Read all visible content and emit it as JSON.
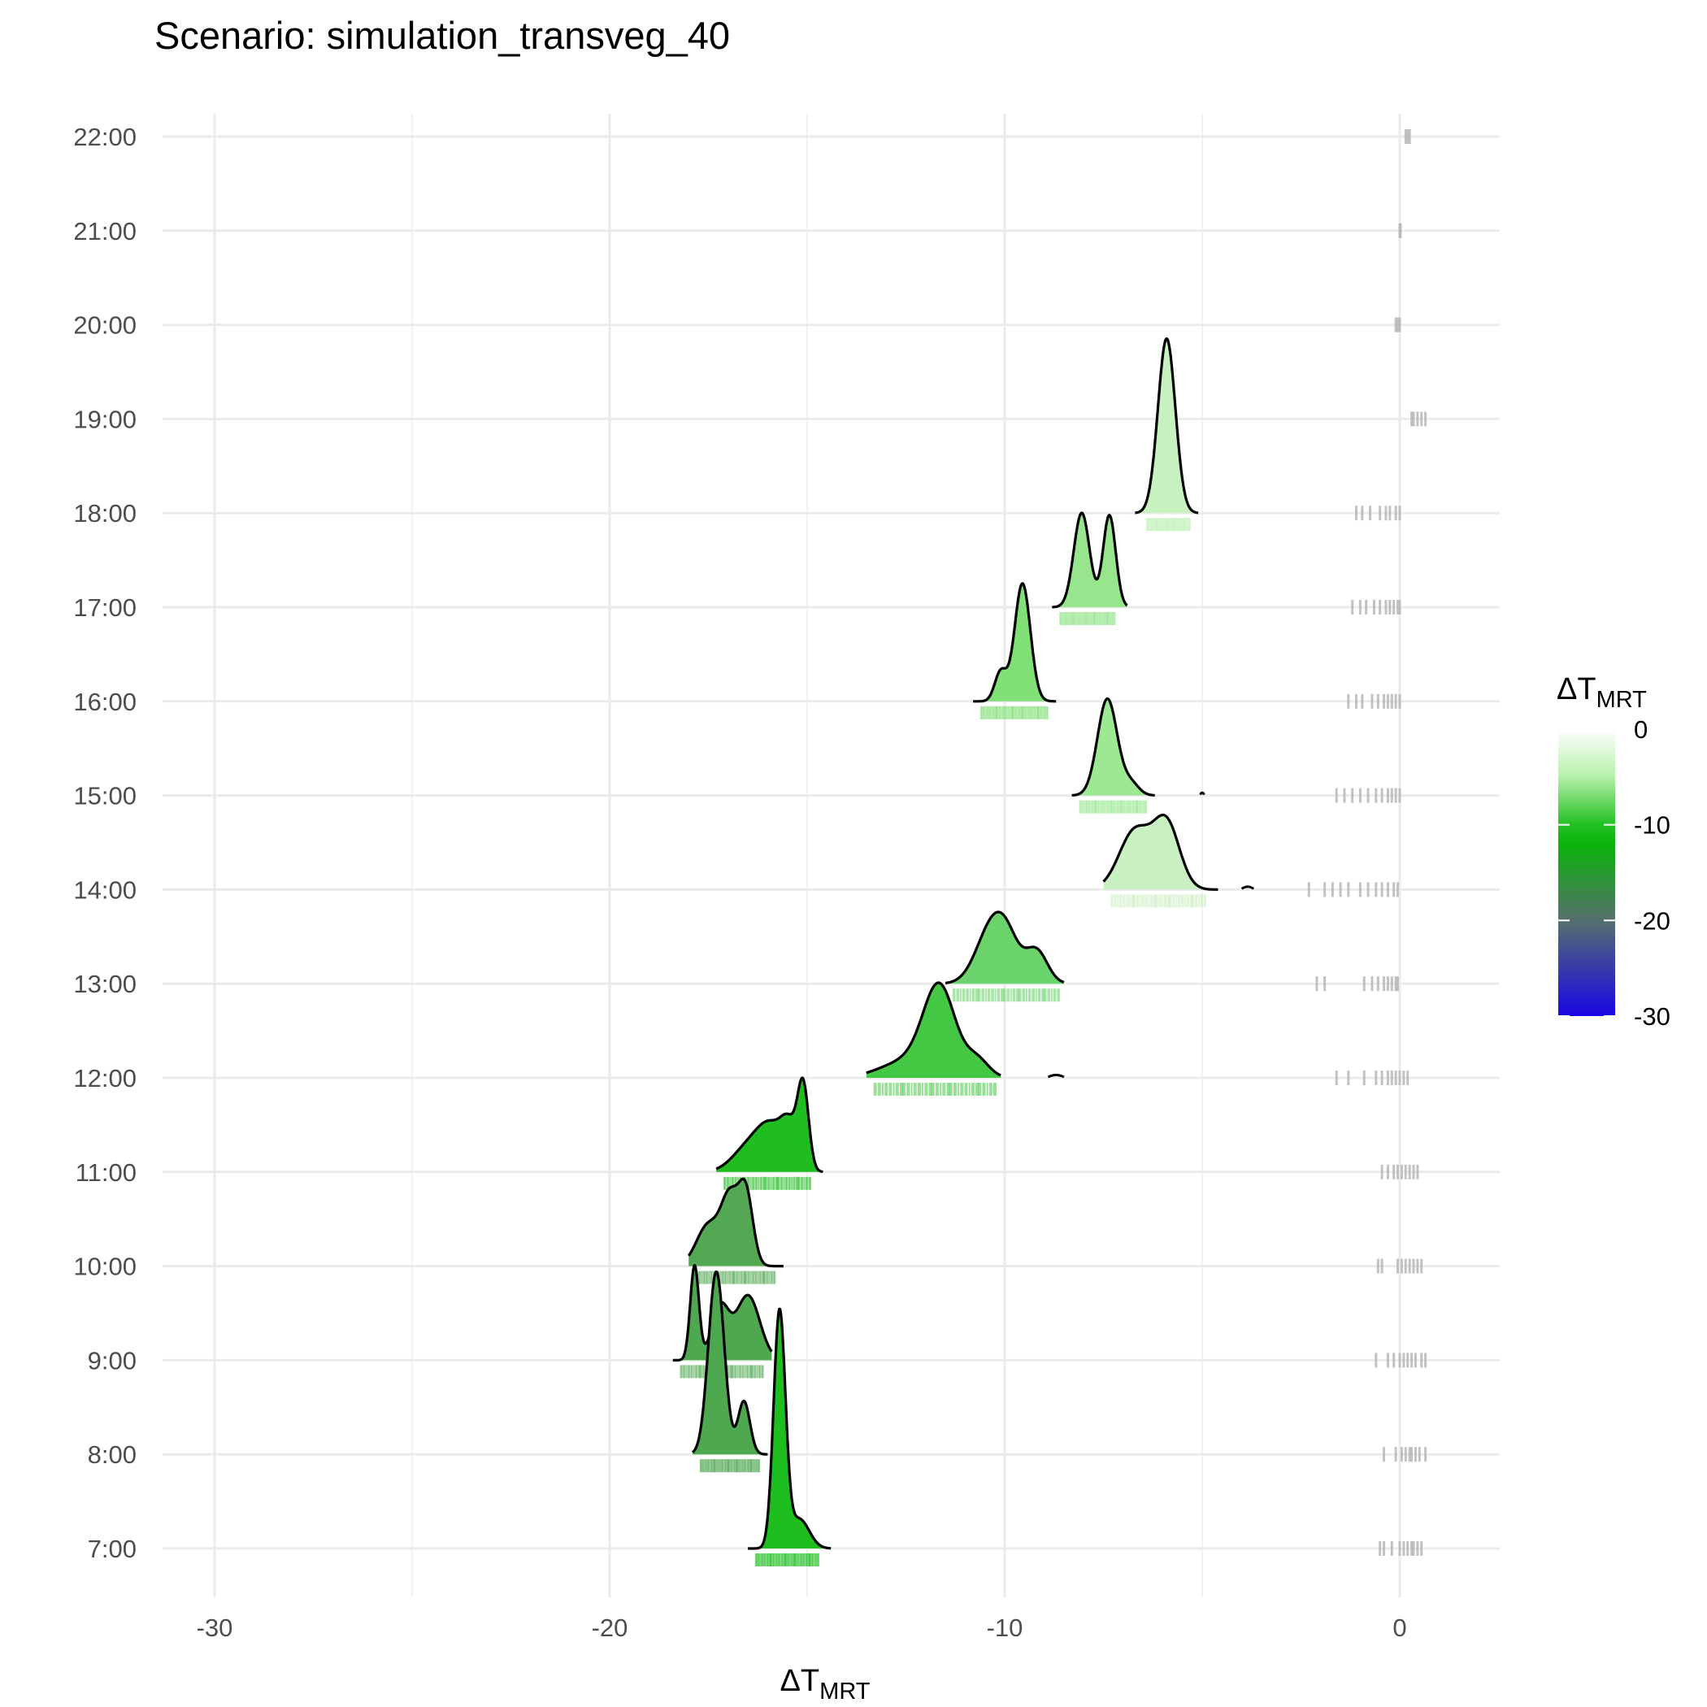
{
  "chart_data": {
    "type": "ridgeline",
    "title": "Scenario: simulation_transveg_40",
    "xlabel": {
      "main": "ΔT",
      "sub": "MRT"
    },
    "ylabel": "",
    "xlim": [
      -32.5,
      2.6
    ],
    "x_ticks": [
      -30,
      -20,
      -10,
      0
    ],
    "x_tick_labels": [
      "-30",
      "-20",
      "-10",
      "0"
    ],
    "x_minor_grid": [
      -25,
      -15,
      -5
    ],
    "grid": true,
    "hours": [
      "7:00",
      "8:00",
      "9:00",
      "10:00",
      "11:00",
      "12:00",
      "13:00",
      "14:00",
      "15:00",
      "16:00",
      "17:00",
      "18:00",
      "19:00",
      "20:00",
      "21:00",
      "22:00"
    ],
    "legend": {
      "title": {
        "main": "ΔT",
        "sub": "MRT"
      },
      "placement": "right",
      "range": [
        -30,
        0
      ],
      "breaks": [
        0,
        -10,
        -20,
        -30
      ],
      "break_labels": [
        "0",
        "-10",
        "-20",
        "-30"
      ],
      "colors": {
        "0": "#ffffff",
        "-5": "#b5f0a8",
        "-10": "#22c022",
        "-12": "#0ab40a",
        "-20": "#556f6e",
        "-30": "#1a06e6"
      }
    },
    "series": [
      {
        "hour": "7:00",
        "range": [
          -16.5,
          -14.4
        ],
        "color": "#1ebe1e",
        "peaks": [
          [
            -15.7,
            0.15,
            2.0
          ],
          [
            -15.2,
            0.25,
            0.25
          ]
        ]
      },
      {
        "hour": "8:00",
        "range": [
          -17.9,
          -16.0
        ],
        "color": "#4ea850",
        "peaks": [
          [
            -17.3,
            0.2,
            1.55
          ],
          [
            -16.6,
            0.15,
            0.45
          ]
        ]
      },
      {
        "hour": "9:00",
        "range": [
          -18.4,
          -15.9
        ],
        "color": "#4ea850",
        "peaks": [
          [
            -17.85,
            0.11,
            0.8
          ],
          [
            -17.2,
            0.22,
            0.45
          ],
          [
            -16.5,
            0.3,
            0.55
          ]
        ]
      },
      {
        "hour": "10:00",
        "range": [
          -18.0,
          -15.6
        ],
        "color": "#54a854",
        "peaks": [
          [
            -17.5,
            0.3,
            0.35
          ],
          [
            -16.95,
            0.22,
            0.55
          ],
          [
            -16.55,
            0.18,
            0.6
          ]
        ]
      },
      {
        "hour": "11:00",
        "range": [
          -17.3,
          -14.6
        ],
        "color": "#20bd20",
        "peaks": [
          [
            -16.5,
            0.4,
            0.2
          ],
          [
            -15.9,
            0.35,
            0.35
          ],
          [
            -15.45,
            0.2,
            0.3
          ],
          [
            -15.1,
            0.14,
            0.7
          ]
        ]
      },
      {
        "hour": "12:00",
        "range": [
          -13.5,
          -10.1
        ],
        "color": "#44c844",
        "peaks": [
          [
            -12.4,
            0.7,
            0.15
          ],
          [
            -11.65,
            0.4,
            0.72
          ],
          [
            -10.7,
            0.3,
            0.15
          ]
        ]
      },
      {
        "hour": "13:00",
        "range": [
          -11.5,
          -8.5
        ],
        "color": "#6bd36b",
        "peaks": [
          [
            -10.3,
            0.4,
            0.5
          ],
          [
            -9.9,
            0.3,
            0.2
          ],
          [
            -9.2,
            0.28,
            0.28
          ]
        ]
      },
      {
        "hour": "14:00",
        "range": [
          -7.5,
          -4.6
        ],
        "color": "#c9f0c1",
        "peaks": [
          [
            -6.7,
            0.4,
            0.5
          ],
          [
            -5.9,
            0.33,
            0.55
          ]
        ]
      },
      {
        "hour": "15:00",
        "range": [
          -8.3,
          -6.2
        ],
        "color": "#9ce893",
        "peaks": [
          [
            -7.4,
            0.25,
            0.82
          ],
          [
            -6.8,
            0.2,
            0.1
          ]
        ]
      },
      {
        "hour": "16:00",
        "range": [
          -10.8,
          -8.7
        ],
        "color": "#80e076",
        "peaks": [
          [
            -10.1,
            0.15,
            0.25
          ],
          [
            -9.55,
            0.2,
            1.0
          ]
        ]
      },
      {
        "hour": "17:00",
        "range": [
          -8.8,
          -6.9
        ],
        "color": "#97e68e",
        "peaks": [
          [
            -8.05,
            0.2,
            0.8
          ],
          [
            -7.35,
            0.16,
            0.78
          ]
        ]
      },
      {
        "hour": "18:00",
        "range": [
          -6.7,
          -5.1
        ],
        "color": "#c7f2bf",
        "peaks": [
          [
            -5.9,
            0.22,
            1.48
          ]
        ]
      }
    ],
    "blips": [
      {
        "hour": "12:00",
        "x": [
          -8.9,
          -8.5
        ]
      },
      {
        "hour": "14:00",
        "x": [
          -4.0,
          -3.7
        ]
      },
      {
        "hour": "15:00",
        "x": [
          -5.05,
          -4.95
        ]
      }
    ],
    "rug_ranges": [
      {
        "hour": "7:00",
        "x": [
          -16.3,
          -14.7
        ],
        "color": "#1ebe1e"
      },
      {
        "hour": "8:00",
        "x": [
          -17.7,
          -16.2
        ],
        "color": "#4ea850"
      },
      {
        "hour": "9:00",
        "x": [
          -18.2,
          -16.1
        ],
        "color": "#4ea850"
      },
      {
        "hour": "10:00",
        "x": [
          -17.8,
          -15.8
        ],
        "color": "#54a854"
      },
      {
        "hour": "11:00",
        "x": [
          -17.1,
          -14.9
        ],
        "color": "#20bd20"
      },
      {
        "hour": "12:00",
        "x": [
          -13.3,
          -10.2
        ],
        "color": "#44c844"
      },
      {
        "hour": "13:00",
        "x": [
          -11.3,
          -8.6
        ],
        "color": "#6bd36b"
      },
      {
        "hour": "14:00",
        "x": [
          -7.3,
          -4.9
        ],
        "color": "#c9f0c1"
      },
      {
        "hour": "15:00",
        "x": [
          -8.1,
          -6.4
        ],
        "color": "#9ce893"
      },
      {
        "hour": "16:00",
        "x": [
          -10.6,
          -8.9
        ],
        "color": "#80e076"
      },
      {
        "hour": "17:00",
        "x": [
          -8.6,
          -7.2
        ],
        "color": "#97e68e"
      },
      {
        "hour": "18:00",
        "x": [
          -6.4,
          -5.3
        ],
        "color": "#c7f2bf"
      }
    ],
    "grey_rugs": [
      {
        "hour": "7:00",
        "x": [
          -0.5,
          -0.4,
          -0.2,
          0.0,
          0.1,
          0.2,
          0.3,
          0.35,
          0.45,
          0.55
        ]
      },
      {
        "hour": "8:00",
        "x": [
          -0.4,
          -0.1,
          0.05,
          0.15,
          0.25,
          0.3,
          0.4,
          0.5,
          0.65
        ]
      },
      {
        "hour": "9:00",
        "x": [
          -0.6,
          -0.3,
          -0.15,
          0.0,
          0.1,
          0.2,
          0.3,
          0.4,
          0.55,
          0.65
        ]
      },
      {
        "hour": "10:00",
        "x": [
          -0.55,
          -0.45,
          -0.05,
          0.05,
          0.15,
          0.25,
          0.35,
          0.45,
          0.55
        ]
      },
      {
        "hour": "11:00",
        "x": [
          -0.45,
          -0.3,
          -0.15,
          -0.05,
          0.05,
          0.15,
          0.25,
          0.35,
          0.45
        ]
      },
      {
        "hour": "12:00",
        "x": [
          -1.6,
          -1.3,
          -0.9,
          -0.6,
          -0.45,
          -0.3,
          -0.2,
          -0.1,
          0.0,
          0.1,
          0.2
        ]
      },
      {
        "hour": "13:00",
        "x": [
          -2.1,
          -1.9,
          -0.9,
          -0.7,
          -0.55,
          -0.4,
          -0.3,
          -0.2,
          -0.1,
          -0.05
        ]
      },
      {
        "hour": "14:00",
        "x": [
          -2.3,
          -1.9,
          -1.7,
          -1.5,
          -1.3,
          -1.0,
          -0.8,
          -0.6,
          -0.45,
          -0.3,
          -0.15,
          -0.05
        ]
      },
      {
        "hour": "15:00",
        "x": [
          -1.6,
          -1.4,
          -1.2,
          -1.0,
          -0.8,
          -0.6,
          -0.45,
          -0.3,
          -0.2,
          -0.1,
          0.0
        ]
      },
      {
        "hour": "16:00",
        "x": [
          -1.3,
          -1.1,
          -0.95,
          -0.7,
          -0.55,
          -0.4,
          -0.3,
          -0.2,
          -0.1,
          0.0
        ]
      },
      {
        "hour": "17:00",
        "x": [
          -1.2,
          -1.0,
          -0.85,
          -0.65,
          -0.5,
          -0.35,
          -0.25,
          -0.15,
          -0.05,
          0.0
        ]
      },
      {
        "hour": "18:00",
        "x": [
          -1.1,
          -0.95,
          -0.75,
          -0.5,
          -0.35,
          -0.25,
          -0.1,
          0.0
        ]
      },
      {
        "hour": "19:00",
        "x": [
          0.3,
          0.35,
          0.45,
          0.55,
          0.65
        ]
      },
      {
        "hour": "20:00",
        "x": [
          -0.1,
          -0.05,
          0.0
        ]
      },
      {
        "hour": "21:00",
        "x": [
          0.0,
          0.02
        ]
      },
      {
        "hour": "22:00",
        "x": [
          0.15,
          0.2,
          0.25
        ]
      }
    ]
  }
}
